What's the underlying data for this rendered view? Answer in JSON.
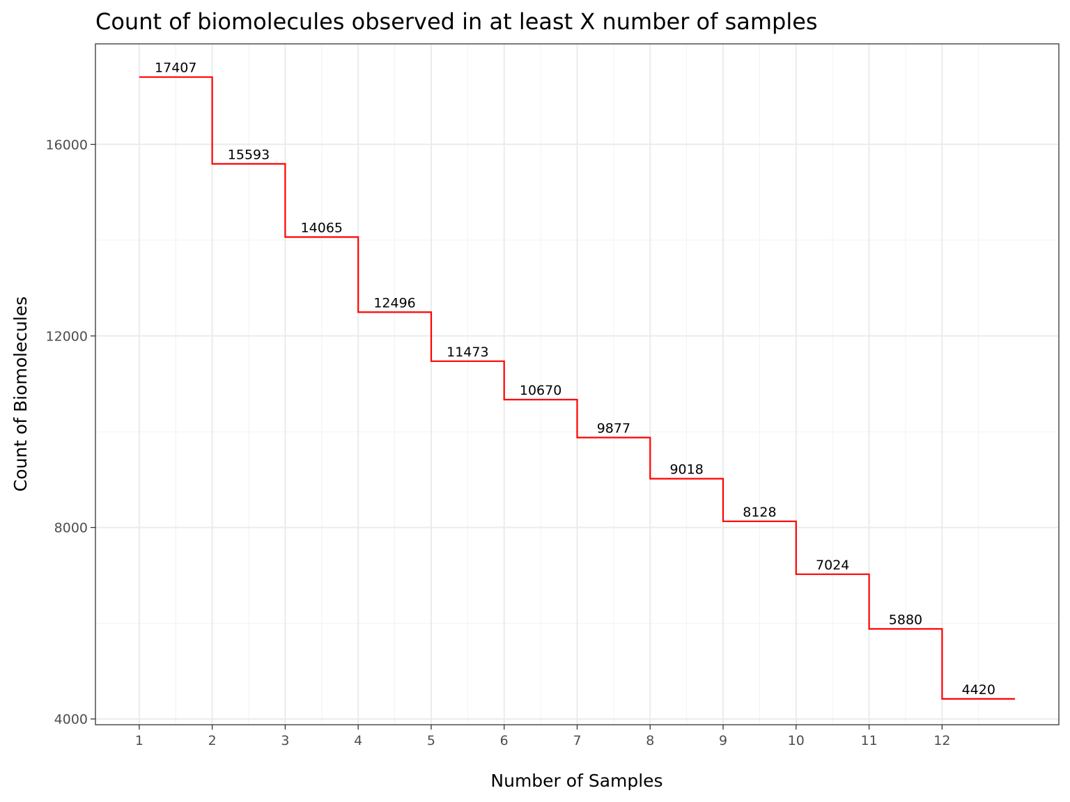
{
  "chart_data": {
    "type": "line",
    "step": true,
    "title": "Count of biomolecules observed in at least X number of samples",
    "xlabel": "Number of Samples",
    "ylabel": "Count of Biomolecules",
    "x": [
      1,
      2,
      3,
      4,
      5,
      6,
      7,
      8,
      9,
      10,
      11,
      12
    ],
    "values": [
      17407,
      15593,
      14065,
      12496,
      11473,
      10670,
      9877,
      9018,
      8128,
      7024,
      5880,
      4420
    ],
    "data_labels": [
      "17407",
      "15593",
      "14065",
      "12496",
      "11473",
      "10670",
      "9877",
      "9018",
      "8128",
      "7024",
      "5880",
      "4420"
    ],
    "x_ticks": [
      "1",
      "2",
      "3",
      "4",
      "5",
      "6",
      "7",
      "8",
      "9",
      "10",
      "11",
      "12"
    ],
    "y_ticks": [
      "4000",
      "8000",
      "12000",
      "16000"
    ],
    "y_tick_values": [
      4000,
      8000,
      12000,
      16000
    ],
    "xlim": [
      0.4,
      13.6
    ],
    "ylim": [
      3880,
      18100
    ],
    "grid": true,
    "line_color": "#ff0000",
    "theme": "bw"
  }
}
